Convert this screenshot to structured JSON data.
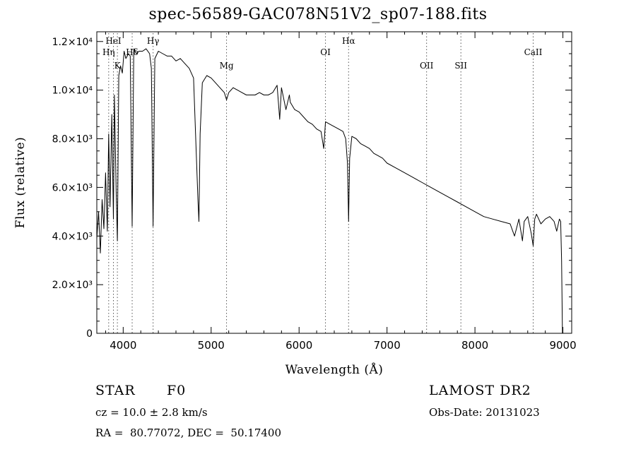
{
  "chart_data": {
    "type": "line",
    "title": "spec-56589-GAC078N51V2_sp07-188.fits",
    "xlabel": "Wavelength (Å)",
    "ylabel": "Flux (relative)",
    "xlim": [
      3700,
      9100
    ],
    "ylim": [
      0,
      12400
    ],
    "x_ticks": [
      4000,
      5000,
      6000,
      7000,
      8000,
      9000
    ],
    "y_ticks": [
      {
        "value": 0,
        "label": "0"
      },
      {
        "value": 2000,
        "label": "2.0×10³"
      },
      {
        "value": 4000,
        "label": "4.0×10³"
      },
      {
        "value": 6000,
        "label": "6.0×10³"
      },
      {
        "value": 8000,
        "label": "8.0×10³"
      },
      {
        "value": 10000,
        "label": "1.0×10⁴"
      },
      {
        "value": 12000,
        "label": "1.2×10⁴"
      }
    ],
    "lines": [
      {
        "label": "HeI",
        "x": 3889,
        "row": 0
      },
      {
        "label": "Hη",
        "x": 3835,
        "row": 1
      },
      {
        "label": "K",
        "x": 3934,
        "row": 2
      },
      {
        "label": "Hδ",
        "x": 4102,
        "row": 1
      },
      {
        "label": "Hγ",
        "x": 4340,
        "row": 0
      },
      {
        "label": "Mg",
        "x": 5175,
        "row": 2
      },
      {
        "label": "OI",
        "x": 6300,
        "row": 1
      },
      {
        "label": "Hα",
        "x": 6563,
        "row": 0
      },
      {
        "label": "OII",
        "x": 7450,
        "row": 2
      },
      {
        "label": "SII",
        "x": 7840,
        "row": 2
      },
      {
        "label": "CaII",
        "x": 8662,
        "row": 1
      }
    ],
    "series": [
      {
        "x": [
          3700,
          3720,
          3740,
          3760,
          3780,
          3800,
          3820,
          3835,
          3850,
          3870,
          3889,
          3900,
          3920,
          3934,
          3950,
          3970,
          3990,
          4010,
          4030,
          4060,
          4080,
          4102,
          4120,
          4150,
          4180,
          4220,
          4260,
          4300,
          4320,
          4340,
          4360,
          4400,
          4450,
          4500,
          4550,
          4600,
          4650,
          4700,
          4750,
          4800,
          4830,
          4850,
          4861,
          4875,
          4900,
          4950,
          5000,
          5050,
          5100,
          5150,
          5175,
          5200,
          5250,
          5300,
          5350,
          5400,
          5450,
          5500,
          5550,
          5600,
          5650,
          5700,
          5750,
          5780,
          5800,
          5850,
          5890,
          5900,
          5950,
          6000,
          6050,
          6100,
          6150,
          6200,
          6250,
          6280,
          6300,
          6350,
          6400,
          6450,
          6500,
          6530,
          6550,
          6563,
          6575,
          6600,
          6650,
          6700,
          6750,
          6800,
          6850,
          6900,
          6950,
          7000,
          7100,
          7200,
          7300,
          7400,
          7500,
          7600,
          7700,
          7800,
          7900,
          8000,
          8100,
          8200,
          8300,
          8400,
          8450,
          8500,
          8540,
          8560,
          8600,
          8640,
          8662,
          8680,
          8700,
          8750,
          8800,
          8850,
          8900,
          8930,
          8960,
          8975,
          8985,
          8995
        ],
        "y": [
          3900,
          5000,
          3300,
          5500,
          4300,
          6600,
          4200,
          8200,
          5200,
          9000,
          4700,
          9800,
          5800,
          3800,
          10600,
          11000,
          10700,
          11600,
          11300,
          11500,
          11400,
          4400,
          11700,
          11500,
          11600,
          11600,
          11700,
          11500,
          10900,
          4400,
          11300,
          11600,
          11500,
          11400,
          11400,
          11200,
          11300,
          11100,
          10900,
          10500,
          7500,
          5500,
          4600,
          8200,
          10300,
          10600,
          10500,
          10300,
          10100,
          9900,
          9600,
          9900,
          10100,
          10000,
          9900,
          9800,
          9800,
          9800,
          9900,
          9800,
          9800,
          9900,
          10200,
          8800,
          10100,
          9200,
          9800,
          9500,
          9200,
          9100,
          8900,
          8700,
          8600,
          8400,
          8300,
          7600,
          8700,
          8600,
          8500,
          8400,
          8300,
          8000,
          7000,
          4600,
          7200,
          8100,
          8000,
          7800,
          7700,
          7600,
          7400,
          7300,
          7200,
          7000,
          6800,
          6600,
          6400,
          6200,
          6000,
          5800,
          5600,
          5400,
          5200,
          5000,
          4800,
          4700,
          4600,
          4500,
          4000,
          4700,
          3800,
          4600,
          4800,
          4100,
          3600,
          4700,
          4900,
          4500,
          4700,
          4800,
          4600,
          4200,
          4700,
          4600,
          3000,
          0
        ]
      }
    ]
  },
  "info": {
    "object": "STAR",
    "subclass": "F0",
    "cz": "cz = 10.0 ± 2.8 km/s",
    "coords": "RA =  80.77072, DEC =  50.17400",
    "survey": "LAMOST DR2",
    "obs_date": "Obs-Date: 20131023"
  }
}
